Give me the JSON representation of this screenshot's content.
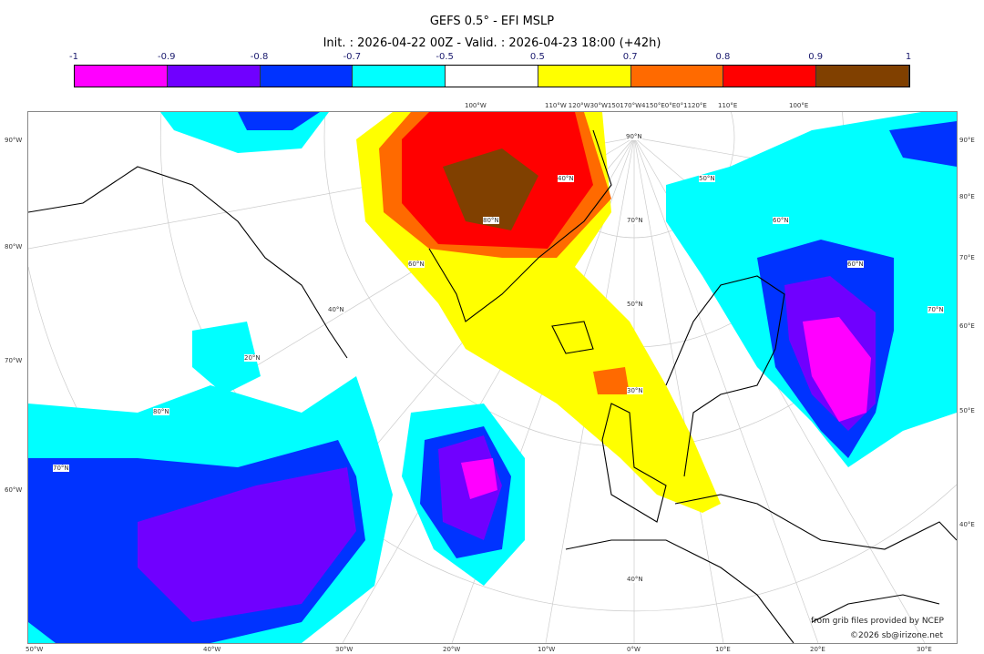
{
  "title": "GEFS 0.5° - EFI MSLP",
  "subtitle": "Init. : 2026-04-22 00Z - Valid. : 2026-04-23 18:00 (+42h)",
  "colorbar": {
    "ticks": [
      "-1",
      "-0.9",
      "-0.8",
      "-0.7",
      "-0.5",
      "0.5",
      "0.7",
      "0.8",
      "0.9",
      "1"
    ],
    "colors": [
      "#ff00ff",
      "#7000ff",
      "#0033ff",
      "#00ffff",
      "#ffffff",
      "#ffff00",
      "#ff6a00",
      "#ff0000",
      "#804000"
    ]
  },
  "axes": {
    "left": [
      "90°W",
      "80°W",
      "70°W",
      "60°W"
    ],
    "bottom": [
      "50°W",
      "40°W",
      "30°W",
      "20°W",
      "10°W",
      "0°W",
      "10°E",
      "20°E",
      "30°E"
    ],
    "right": [
      "90°E",
      "80°E",
      "70°E",
      "60°E",
      "50°E",
      "40°E"
    ],
    "top": [
      "100°W",
      "110°W",
      "120°W30°W150170°W4150°E0°E0°1120°E",
      "110°E",
      "100°E"
    ]
  },
  "grid_labels": [
    "90°N",
    "80°N",
    "70°N",
    "60°N",
    "50°N",
    "40°N",
    "30°N",
    "20°N",
    "80°N",
    "70°N",
    "60°N",
    "50°N",
    "40°N",
    "60°N",
    "70°N",
    "40°N"
  ],
  "credits": {
    "source": "from grib files provided by NCEP",
    "copyright": "©2026 sb@irizone.net"
  }
}
